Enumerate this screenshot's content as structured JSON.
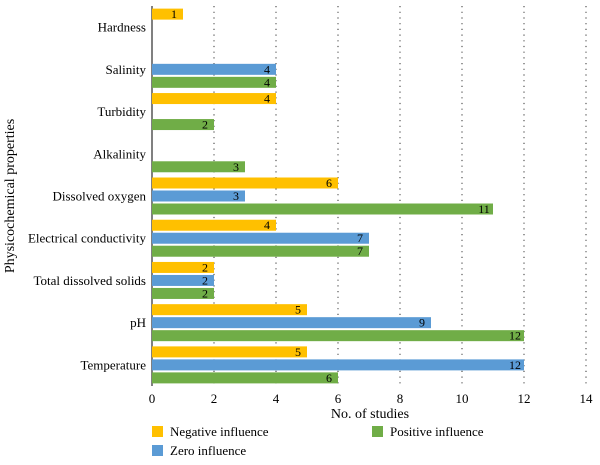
{
  "chart_data": {
    "type": "bar",
    "orientation": "horizontal",
    "categories": [
      "Hardness",
      "Salinity",
      "Turbidity",
      "Alkalinity",
      "Dissolved oxygen",
      "Electrical conductivity",
      "Total dissolved solids",
      "pH",
      "Temperature"
    ],
    "series": [
      {
        "name": "Negative influence",
        "color": "#ffc000",
        "values": [
          1,
          null,
          4,
          null,
          6,
          4,
          2,
          5,
          5
        ]
      },
      {
        "name": "Zero influence",
        "color": "#5b9bd5",
        "values": [
          null,
          4,
          null,
          null,
          3,
          7,
          2,
          9,
          12
        ]
      },
      {
        "name": "Positive influence",
        "color": "#70ad47",
        "values": [
          null,
          4,
          2,
          3,
          11,
          7,
          2,
          12,
          6
        ]
      }
    ],
    "xlabel": "No. of studies",
    "ylabel": "Physicochemical properties",
    "xlim": [
      0,
      14
    ],
    "xticks": [
      "0",
      "2",
      "4",
      "6",
      "8",
      "10",
      "12",
      "14"
    ],
    "grid": "vertical dotted",
    "legend_position": "bottom"
  }
}
